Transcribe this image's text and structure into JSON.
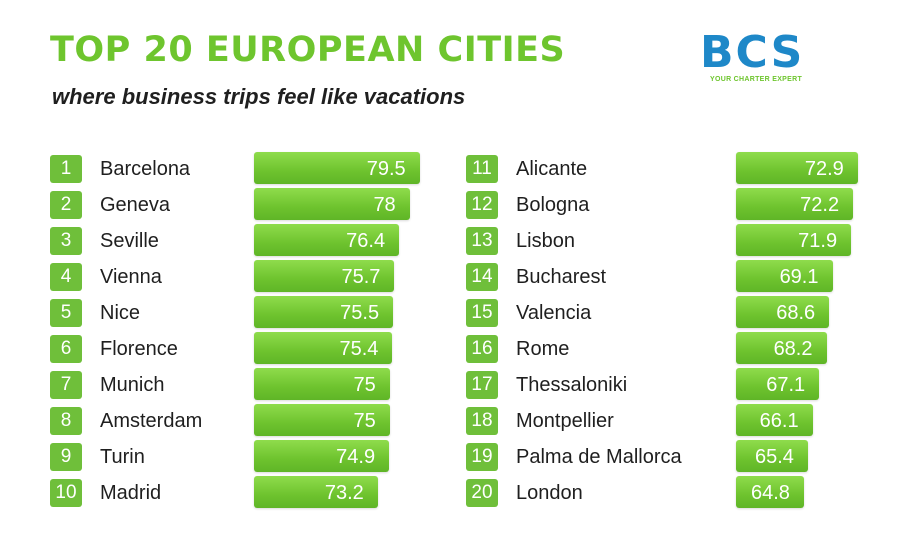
{
  "header": {
    "title": "TOP 20 EUROPEAN CITIES",
    "subtitle": "where business trips feel like vacations"
  },
  "logo": {
    "mark": "BCS",
    "tagline": "YOUR CHARTER EXPERT"
  },
  "colors": {
    "accent_green": "#6ec52e",
    "logo_blue": "#1e88c8"
  },
  "chart_data": {
    "type": "bar",
    "ranks": [
      "1",
      "2",
      "3",
      "4",
      "5",
      "6",
      "7",
      "8",
      "9",
      "10",
      "11",
      "12",
      "13",
      "14",
      "15",
      "16",
      "17",
      "18",
      "19",
      "20"
    ],
    "categories": [
      "Barcelona",
      "Geneva",
      "Seville",
      "Vienna",
      "Nice",
      "Florence",
      "Munich",
      "Amsterdam",
      "Turin",
      "Madrid",
      "Alicante",
      "Bologna",
      "Lisbon",
      "Bucharest",
      "Valencia",
      "Rome",
      "Thessaloniki",
      "Montpellier",
      "Palma de Mallorca",
      "London"
    ],
    "values": [
      79.5,
      78,
      76.4,
      75.7,
      75.5,
      75.4,
      75,
      75,
      74.9,
      73.2,
      72.9,
      72.2,
      71.9,
      69.1,
      68.6,
      68.2,
      67.1,
      66.1,
      65.4,
      64.8
    ],
    "value_labels": [
      "79.5",
      "78",
      "76.4",
      "75.7",
      "75.5",
      "75.4",
      "75",
      "75",
      "74.9",
      "73.2",
      "72.9",
      "72.2",
      "71.9",
      "69.1",
      "68.6",
      "68.2",
      "67.1",
      "66.1",
      "65.4",
      "64.8"
    ],
    "orientation": "horizontal",
    "layout": "two-columns",
    "grid": false
  }
}
